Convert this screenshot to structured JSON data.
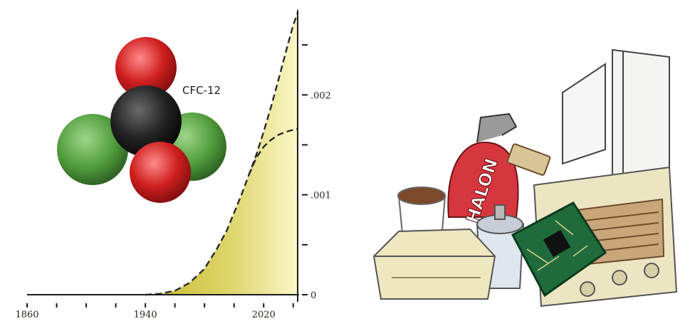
{
  "chart_data": {
    "type": "area",
    "title": "",
    "xlabel": "",
    "ylabel": "",
    "x_ticks": [
      1860,
      1940,
      2020
    ],
    "y_ticks": [
      {
        "value": 0,
        "label": "0"
      },
      {
        "value": 0.001,
        "label": ".001"
      },
      {
        "value": 0.002,
        "label": ".002"
      }
    ],
    "xlim": [
      1860,
      2043
    ],
    "ylim": [
      0,
      0.00285
    ],
    "grid": false,
    "colors": {
      "fill_light": "#fbf6c8",
      "fill_dark": "#c4bb2c",
      "line": "#2a2a2a",
      "axis": "#1a1a1a"
    },
    "series": [
      {
        "style": "dashed-filled",
        "x": [
          1940,
          1950,
          1960,
          1970,
          1980,
          1988,
          1995,
          2000,
          2005,
          2010,
          2015,
          2020,
          2025,
          2030,
          2035,
          2040,
          2043
        ],
        "values": [
          0,
          1e-05,
          4e-05,
          0.00012,
          0.00026,
          0.00045,
          0.00064,
          0.00082,
          0.001,
          0.0012,
          0.0014,
          0.00163,
          0.00188,
          0.00215,
          0.00243,
          0.0027,
          0.00282
        ]
      },
      {
        "style": "dashed",
        "x": [
          2010,
          2015,
          2020,
          2025,
          2030,
          2035,
          2040,
          2043
        ],
        "values": [
          0.0012,
          0.00137,
          0.00148,
          0.00155,
          0.0016,
          0.00163,
          0.00165,
          0.00166
        ]
      }
    ]
  },
  "molecule": {
    "label": "CFC-12",
    "colors": {
      "fluorine": "#cf1f1f",
      "chlorine": "#4e9a3a",
      "carbon": "#232323"
    }
  },
  "illustration": {
    "extinguisher_text": "HALON",
    "colors": {
      "extinguisher": "#d6363d",
      "foam": "#efe7bf",
      "circuit": "#1f6b3c",
      "appliance": "#ece5c2"
    }
  }
}
